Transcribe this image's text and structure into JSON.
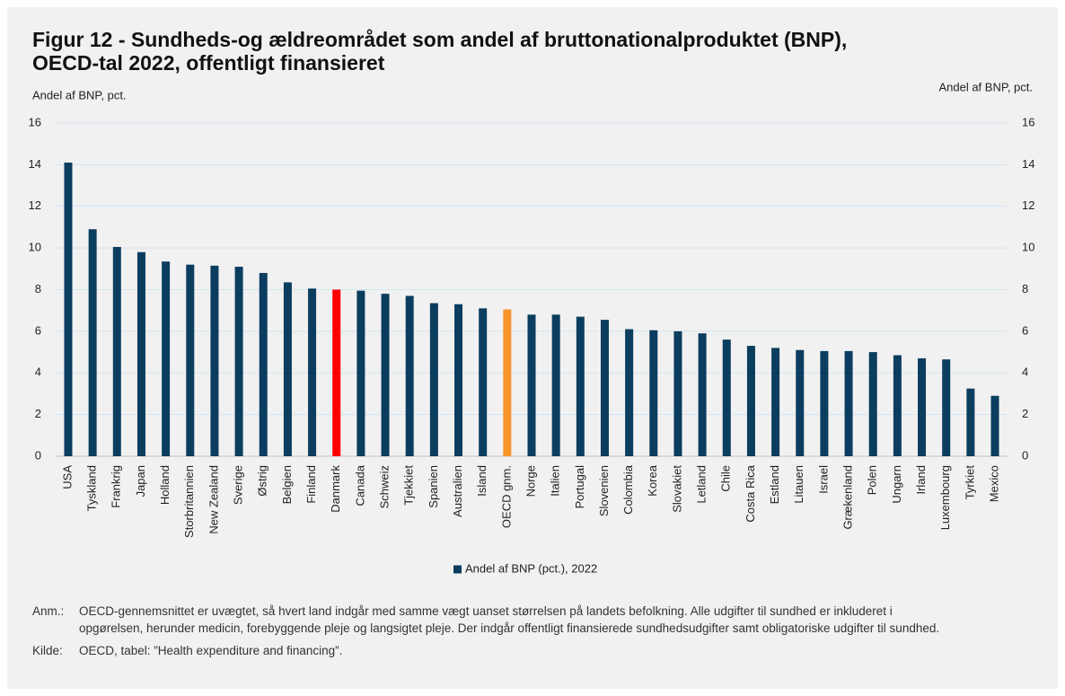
{
  "chart_data": {
    "type": "bar",
    "title": [
      "Figur 12 - Sundheds-og ældreområdet som andel af bruttonationalproduktet (BNP),",
      "OECD-tal 2022, offentligt finansieret"
    ],
    "y_label": "Andel af BNP, pct.",
    "y2_label": "Andel af BNP, pct.",
    "categories": [
      "USA",
      "Tyskland",
      "Frankrig",
      "Japan",
      "Holland",
      "Storbritannien",
      "New Zealand",
      "Sverige",
      "Østrig",
      "Belgien",
      "Finland",
      "Danmark",
      "Canada",
      "Schweiz",
      "Tjekkiet",
      "Spanien",
      "Australien",
      "Island",
      "OECD gnm.",
      "Norge",
      "Italien",
      "Portugal",
      "Slovenien",
      "Colombia",
      "Korea",
      "Slovakiet",
      "Letland",
      "Chile",
      "Costa Rica",
      "Estland",
      "Litauen",
      "Israel",
      "Grækenland",
      "Polen",
      "Ungarn",
      "Irland",
      "Luxembourg",
      "Tyrkiet",
      "Mexico"
    ],
    "series": [
      {
        "name": "Andel af BNP (pct.), 2022",
        "color": "#0b3d5e",
        "values": [
          14.1,
          10.9,
          10.05,
          9.8,
          9.35,
          9.2,
          9.15,
          9.1,
          8.8,
          8.35,
          8.05,
          8.0,
          7.95,
          7.8,
          7.7,
          7.35,
          7.3,
          7.1,
          7.05,
          6.8,
          6.8,
          6.7,
          6.55,
          6.1,
          6.05,
          6.0,
          5.9,
          5.6,
          5.3,
          5.2,
          5.1,
          5.05,
          5.05,
          5.0,
          4.85,
          4.7,
          4.65,
          3.25,
          2.9
        ],
        "colors": [
          "#0b3d5e",
          "#0b3d5e",
          "#0b3d5e",
          "#0b3d5e",
          "#0b3d5e",
          "#0b3d5e",
          "#0b3d5e",
          "#0b3d5e",
          "#0b3d5e",
          "#0b3d5e",
          "#0b3d5e",
          "#ff0000",
          "#0b3d5e",
          "#0b3d5e",
          "#0b3d5e",
          "#0b3d5e",
          "#0b3d5e",
          "#0b3d5e",
          "#f7942a",
          "#0b3d5e",
          "#0b3d5e",
          "#0b3d5e",
          "#0b3d5e",
          "#0b3d5e",
          "#0b3d5e",
          "#0b3d5e",
          "#0b3d5e",
          "#0b3d5e",
          "#0b3d5e",
          "#0b3d5e",
          "#0b3d5e",
          "#0b3d5e",
          "#0b3d5e",
          "#0b3d5e",
          "#0b3d5e",
          "#0b3d5e",
          "#0b3d5e",
          "#0b3d5e",
          "#0b3d5e"
        ]
      }
    ],
    "ylim": [
      0,
      16
    ],
    "yticks": [
      0,
      2,
      4,
      6,
      8,
      10,
      12,
      14,
      16
    ],
    "y2lim": [
      0,
      16
    ],
    "y2ticks": [
      0,
      2,
      4,
      6,
      8,
      10,
      12,
      14,
      16
    ],
    "grid": true,
    "legend": "bottom",
    "notes": [
      {
        "label": "Anm.:",
        "text": "OECD-gennemsnittet er uvægtet, så hvert land indgår med samme vægt uanset størrelsen på landets befolkning. Alle udgifter til sundhed er inkluderet i opgørelsen, herunder medicin, forebyggende pleje og langsigtet pleje. Der indgår offentligt finansierede sundhedsudgifter samt obligatoriske udgifter til sundhed."
      },
      {
        "label": "Kilde:",
        "text": "OECD, tabel: ”Health expenditure and financing”."
      }
    ]
  }
}
